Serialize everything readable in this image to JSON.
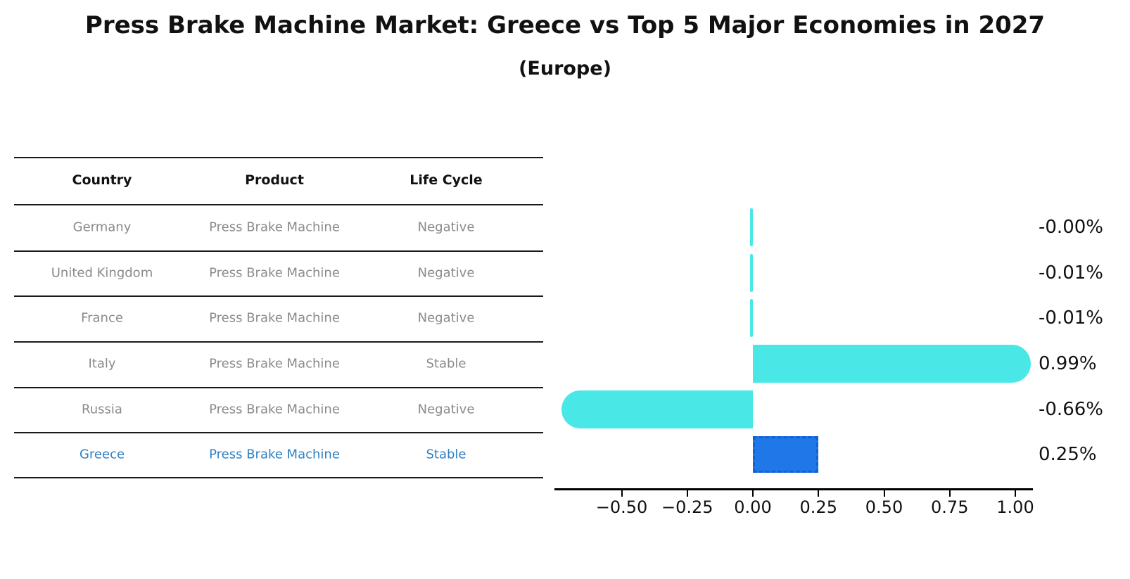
{
  "title": "Press Brake Machine Market: Greece vs Top 5 Major Economies in 2027",
  "subtitle": "(Europe)",
  "table": {
    "headers": [
      "Country",
      "Product",
      "Life Cycle"
    ],
    "rows": [
      {
        "country": "Germany",
        "product": "Press Brake Machine",
        "life_cycle": "Negative",
        "highlight": false
      },
      {
        "country": "United Kingdom",
        "product": "Press Brake Machine",
        "life_cycle": "Negative",
        "highlight": false
      },
      {
        "country": "France",
        "product": "Press Brake Machine",
        "life_cycle": "Negative",
        "highlight": false
      },
      {
        "country": "Italy",
        "product": "Press Brake Machine",
        "life_cycle": "Stable",
        "highlight": false
      },
      {
        "country": "Russia",
        "product": "Press Brake Machine",
        "life_cycle": "Negative",
        "highlight": false
      },
      {
        "country": "Greece",
        "product": "Press Brake Machine",
        "life_cycle": "Stable",
        "highlight": true
      }
    ]
  },
  "chart_data": {
    "type": "bar",
    "orientation": "horizontal",
    "title": "Press Brake Machine Market: Greece vs Top 5 Major Economies in 2027 (Europe)",
    "categories": [
      "Germany",
      "United Kingdom",
      "France",
      "Italy",
      "Russia",
      "Greece"
    ],
    "values": [
      -0.0,
      -0.01,
      -0.01,
      0.99,
      -0.66,
      0.25
    ],
    "value_labels": [
      "-0.00%",
      "-0.01%",
      "-0.01%",
      "0.99%",
      "-0.66%",
      "0.25%"
    ],
    "value_suffix": "%",
    "highlight_index": 5,
    "x_tick_values": [
      -0.5,
      -0.25,
      0.0,
      0.25,
      0.5,
      0.75,
      1.0
    ],
    "x_tick_labels": [
      "−0.50",
      "−0.25",
      "0.00",
      "0.25",
      "0.50",
      "0.75",
      "1.00"
    ],
    "xlim": [
      -0.76,
      1.07
    ],
    "grid": false,
    "legend": null,
    "bar_color": "#49e8e7",
    "highlight_bar_color": "#2077e8"
  },
  "colors": {
    "title_text": "#111111",
    "table_header_text": "#111111",
    "table_body_text": "#8a8a8a",
    "table_rule": "#1a1a1a",
    "highlight_text": "#2e80c3",
    "bar_cyan": "#49e8e7",
    "bar_blue": "#2077e8",
    "bar_blue_border": "#1160d4",
    "axis": "#000000"
  }
}
